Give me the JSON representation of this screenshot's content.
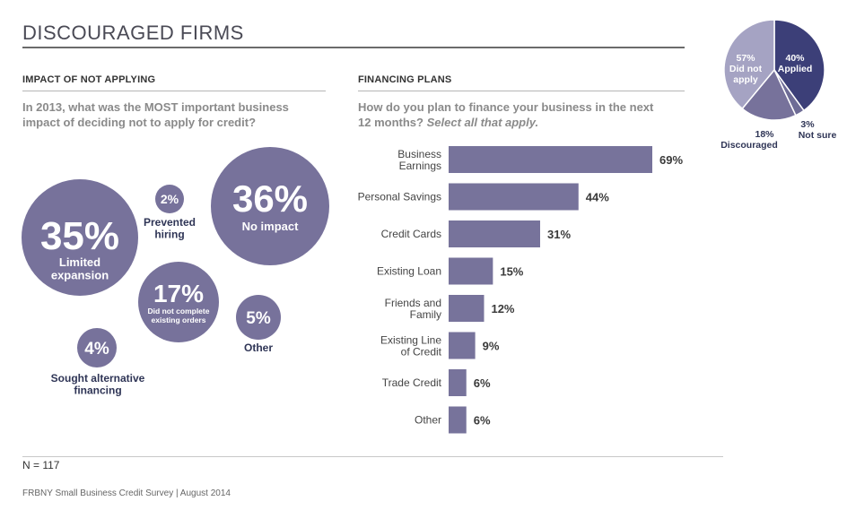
{
  "page": {
    "title": "DISCOURAGED FIRMS",
    "n_label": "N = 117",
    "footer": "FRBNY Small Business Credit Survey  |  August 2014"
  },
  "colors": {
    "bubble": "#77729b",
    "bar": "#77739b",
    "pie_applied": "#3c3f78",
    "pie_did_not_apply": "#a5a3c3",
    "pie_discouraged": "#77729b",
    "pie_not_sure": "#6e6c96",
    "label_dark": "#2f3556"
  },
  "chart_data": [
    {
      "type": "bubble",
      "section": "IMPACT OF NOT APPLYING",
      "title": "In 2013, what was the MOST important business impact of deciding not to apply for credit?",
      "bubbles": [
        {
          "label": "Limited expansion",
          "value": 35,
          "value_label": "35%"
        },
        {
          "label": "Prevented hiring",
          "value": 2,
          "value_label": "2%"
        },
        {
          "label": "No impact",
          "value": 36,
          "value_label": "36%"
        },
        {
          "label": "Did not complete existing orders",
          "value": 17,
          "value_label": "17%"
        },
        {
          "label": "Other",
          "value": 5,
          "value_label": "5%"
        },
        {
          "label": "Sought alternative financing",
          "value": 4,
          "value_label": "4%"
        }
      ]
    },
    {
      "type": "bar",
      "orientation": "horizontal",
      "section": "FINANCING PLANS",
      "title": "How do you plan to finance your business in the next 12 months?",
      "title_emphasis": "Select all that apply.",
      "categories": [
        "Business Earnings",
        "Personal Savings",
        "Credit Cards",
        "Existing Loan",
        "Friends and Family",
        "Existing Line of Credit",
        "Trade Credit",
        "Other"
      ],
      "category_lines": [
        [
          "Business",
          "Earnings"
        ],
        [
          "Personal Savings"
        ],
        [
          "Credit Cards"
        ],
        [
          "Existing Loan"
        ],
        [
          "Friends and",
          "Family"
        ],
        [
          "Existing Line",
          "of Credit"
        ],
        [
          "Trade Credit"
        ],
        [
          "Other"
        ]
      ],
      "values": [
        69,
        44,
        31,
        15,
        12,
        9,
        6,
        6
      ],
      "value_labels": [
        "69%",
        "44%",
        "31%",
        "15%",
        "12%",
        "9%",
        "6%",
        "6%"
      ],
      "xlim": [
        0,
        100
      ]
    },
    {
      "type": "pie",
      "slices": [
        {
          "key": "applied",
          "value": 40,
          "value_label": "40%",
          "label": "Applied"
        },
        {
          "key": "not_sure",
          "value": 3,
          "value_label": "3%",
          "label": "Not sure"
        },
        {
          "key": "did_not_apply",
          "value": 57,
          "value_label": "57%",
          "label_lines": [
            "Did not",
            "apply"
          ]
        }
      ],
      "discouraged": {
        "value": 18,
        "value_label": "18%",
        "label": "Discouraged"
      }
    }
  ]
}
